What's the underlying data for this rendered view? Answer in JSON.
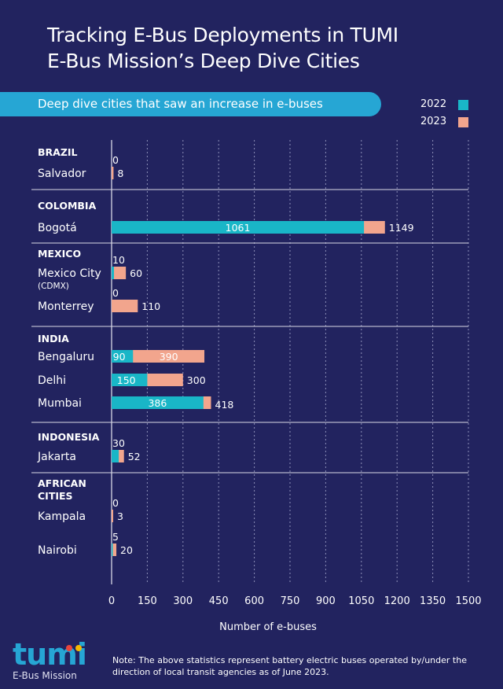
{
  "header": {
    "title_line1": "Tracking E-Bus Deployments in TUMI",
    "title_line2": "E-Bus Mission’s Deep Dive Cities",
    "subtitle": "Deep dive cities that saw an increase in e-buses"
  },
  "legend": {
    "label_2022": "2022",
    "label_2023": "2023"
  },
  "colors": {
    "background": "#22235f",
    "series_2022": "#19b6c7",
    "series_2023": "#f2a58d",
    "separator": "#d9d9e6",
    "pill": "#26a6d4"
  },
  "chart_data": {
    "type": "bar",
    "orientation": "horizontal",
    "xlabel": "Number of e-buses",
    "xlim": [
      0,
      1500
    ],
    "xticks": [
      0,
      150,
      300,
      450,
      600,
      750,
      900,
      1050,
      1200,
      1350,
      1500
    ],
    "grid": "vertical-dashed",
    "legend_position": "top-right",
    "groups": [
      {
        "name": "BRAZIL",
        "cities": [
          {
            "name": "Salvador",
            "v2022": 0,
            "v2023": 8
          }
        ]
      },
      {
        "name": "COLOMBIA",
        "cities": [
          {
            "name": "Bogotá",
            "v2022": 1061,
            "v2023": 1149
          }
        ]
      },
      {
        "name": "MEXICO",
        "cities": [
          {
            "name": "Mexico City",
            "sub": "(CDMX)",
            "v2022": 10,
            "v2023": 60
          },
          {
            "name": "Monterrey",
            "v2022": 0,
            "v2023": 110
          }
        ]
      },
      {
        "name": "INDIA",
        "cities": [
          {
            "name": "Bengaluru",
            "v2022": 90,
            "v2023": 390
          },
          {
            "name": "Delhi",
            "v2022": 150,
            "v2023": 300
          },
          {
            "name": "Mumbai",
            "v2022": 386,
            "v2023": 418
          }
        ]
      },
      {
        "name": "INDONESIA",
        "cities": [
          {
            "name": "Jakarta",
            "v2022": 30,
            "v2023": 52
          }
        ]
      },
      {
        "name": "AFRICAN CITIES",
        "name_lines": [
          "AFRICAN",
          "CITIES"
        ],
        "cities": [
          {
            "name": "Kampala",
            "v2022": 0,
            "v2023": 3
          },
          {
            "name": "Nairobi",
            "v2022": 5,
            "v2023": 20
          }
        ]
      }
    ]
  },
  "footer": {
    "logo_text": "tumi",
    "logo_subtitle": "E-Bus Mission",
    "note": "Note: The above statistics represent battery electric buses operated by/under the direction of local transit agencies as of June 2023."
  }
}
